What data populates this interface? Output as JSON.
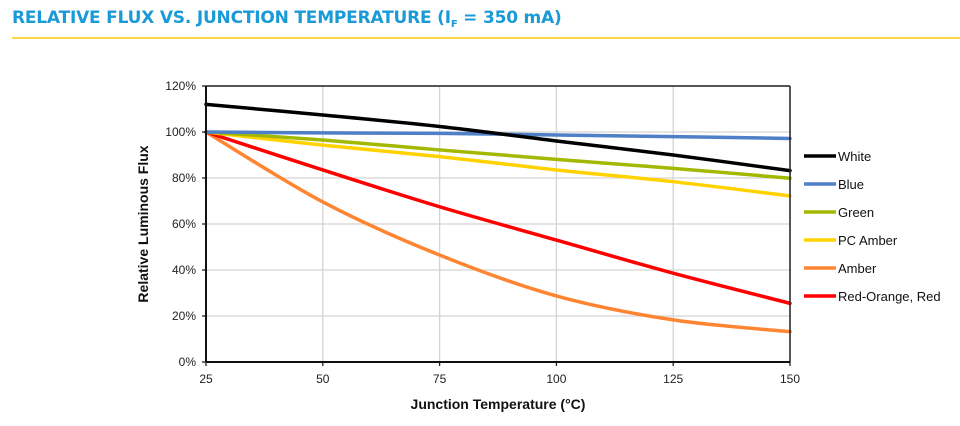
{
  "header": {
    "title_main": "RELATIVE FLUX VS. JUNCTION TEMPERATURE (I",
    "title_sub": "F",
    "title_end": " = 350 mA)"
  },
  "colors": {
    "title": "#1a9ad6",
    "title_rule": "#ffd54a"
  },
  "chart_data": {
    "type": "line",
    "title": "Relative Flux vs. Junction Temperature (IF = 350 mA)",
    "xlabel": "Junction Temperature (°C)",
    "ylabel": "Relative Luminous Flux",
    "xlim": [
      25,
      150
    ],
    "ylim": [
      0,
      120
    ],
    "x_ticks": [
      25,
      50,
      75,
      100,
      125,
      150
    ],
    "y_ticks": [
      "0%",
      "20%",
      "40%",
      "60%",
      "80%",
      "100%",
      "120%"
    ],
    "y_tick_values": [
      0,
      20,
      40,
      60,
      80,
      100,
      120
    ],
    "grid": true,
    "legend_position": "right",
    "x": [
      25,
      50,
      75,
      100,
      125,
      150
    ],
    "series": [
      {
        "name": "White",
        "color": "#000000",
        "values": [
          112,
          107.4,
          102.4,
          96.1,
          90,
          83.2
        ]
      },
      {
        "name": "Blue",
        "color": "#4f7fc7",
        "values": [
          100,
          99.6,
          99.4,
          98.7,
          98,
          97.2
        ]
      },
      {
        "name": "Green",
        "color": "#a3b800",
        "values": [
          100,
          96.5,
          92.2,
          88.1,
          84.2,
          79.9
        ]
      },
      {
        "name": "PC Amber",
        "color": "#ffd200",
        "values": [
          100,
          94.3,
          89.3,
          83.5,
          78.4,
          72.2
        ]
      },
      {
        "name": "Amber",
        "color": "#ff8533",
        "values": [
          100,
          69.6,
          46.5,
          28.7,
          18.3,
          13.2
        ]
      },
      {
        "name": "Red-Orange, Red",
        "color": "#ff0000",
        "values": [
          100,
          83.5,
          67.5,
          53,
          38.6,
          25.5
        ]
      }
    ]
  }
}
